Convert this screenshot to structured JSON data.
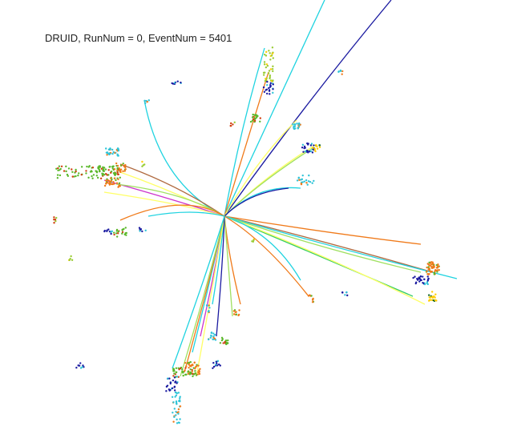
{
  "display": {
    "title": "DRUID, RunNum = 0, EventNum = 5401",
    "track_colors": [
      "#1fd3e0",
      "#1a1aa0",
      "#f07a1a",
      "#ffff66",
      "#a0e060",
      "#33cc66",
      "#cc33cc",
      "#b06a40",
      "#8899ff"
    ],
    "cluster_colors": [
      "#1a1aa0",
      "#2ec4d8",
      "#f07a1a",
      "#5ab82a",
      "#d04010",
      "#99cc33",
      "#ffcc00",
      "#1d6d2d"
    ]
  }
}
